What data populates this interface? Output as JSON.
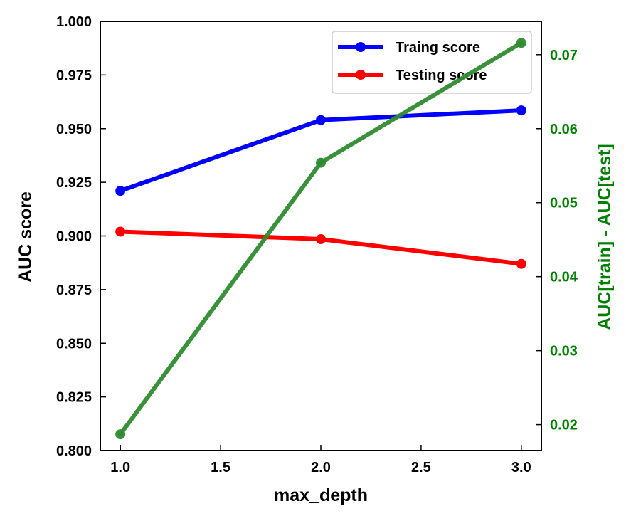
{
  "chart_data": {
    "type": "line",
    "x": [
      1.0,
      2.0,
      3.0
    ],
    "xlabel": "max_depth",
    "xlim": [
      0.9,
      3.1
    ],
    "xticks": [
      "1.0",
      "1.5",
      "2.0",
      "2.5",
      "3.0"
    ],
    "xtick_values": [
      1.0,
      1.5,
      2.0,
      2.5,
      3.0
    ],
    "ylabel": "AUC score",
    "ylim": [
      0.8,
      1.0
    ],
    "yticks": [
      "0.800",
      "0.825",
      "0.850",
      "0.875",
      "0.900",
      "0.925",
      "0.950",
      "0.975",
      "1.000"
    ],
    "ytick_values": [
      0.8,
      0.825,
      0.85,
      0.875,
      0.9,
      0.925,
      0.95,
      0.975,
      1.0
    ],
    "ylabel_right": "AUC[train] - AUC[test]",
    "ylim_right": [
      0.0165,
      0.0745
    ],
    "yticks_right": [
      "0.02",
      "0.03",
      "0.04",
      "0.05",
      "0.06",
      "0.07"
    ],
    "ytick_values_right": [
      0.02,
      0.03,
      0.04,
      0.05,
      0.06,
      0.07
    ],
    "series": [
      {
        "name": "Traing score",
        "axis": "left",
        "color": "#0000ff",
        "values": [
          0.921,
          0.954,
          0.9585
        ]
      },
      {
        "name": "Testing score",
        "axis": "left",
        "color": "#ff0000",
        "values": [
          0.902,
          0.8985,
          0.887
        ]
      },
      {
        "axis": "right",
        "color": "#2e8b2e",
        "values": [
          0.0187,
          0.0554,
          0.0716
        ]
      }
    ],
    "legend": {
      "placement": "top-right",
      "entries": [
        "Traing score",
        "Testing score"
      ]
    },
    "right_axis_color": "#008000",
    "grid": false
  }
}
